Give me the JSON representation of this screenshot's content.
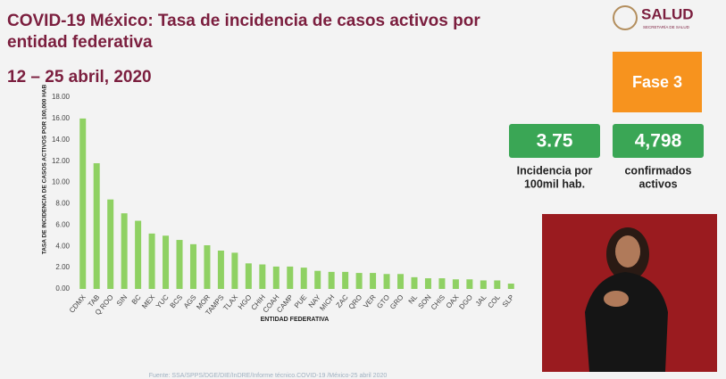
{
  "chart_data": {
    "type": "bar",
    "title": "COVID-19 México: Tasa de incidencia de casos activos por entidad federativa",
    "subtitle": "12 – 25 abril, 2020",
    "y_label": "TASA DE INCIDENCIA DE CASOS ACTIVOS POR 100,000 HAB",
    "x_label": "ENTIDAD FEDERATIVA",
    "categories": [
      "CDMX",
      "TAB",
      "Q ROO",
      "SIN",
      "BC",
      "MEX",
      "YUC",
      "BCS",
      "AGS",
      "MOR",
      "TAMPS",
      "TLAX",
      "HGO",
      "CHIH",
      "COAH",
      "CAMP",
      "PUE",
      "NAY",
      "MICH",
      "ZAC",
      "QRO",
      "VER",
      "GTO",
      "GRO",
      "NL",
      "SON",
      "CHIS",
      "OAX",
      "DGO",
      "JAL",
      "COL",
      "SLP"
    ],
    "values": [
      16.0,
      11.8,
      8.4,
      7.1,
      6.4,
      5.2,
      5.0,
      4.6,
      4.2,
      4.1,
      3.6,
      3.4,
      2.4,
      2.3,
      2.1,
      2.1,
      2.0,
      1.7,
      1.6,
      1.6,
      1.5,
      1.5,
      1.4,
      1.4,
      1.1,
      1.0,
      1.0,
      0.9,
      0.9,
      0.8,
      0.8,
      0.5
    ],
    "color": "#8fd163",
    "ylim": [
      0,
      18
    ],
    "yticks": [
      {
        "value": 0,
        "label": "0.00"
      },
      {
        "value": 2,
        "label": "2.00"
      },
      {
        "value": 4,
        "label": "4.00"
      },
      {
        "value": 6,
        "label": "6.00"
      },
      {
        "value": 8,
        "label": "8.00"
      },
      {
        "value": 10,
        "label": "10.00"
      },
      {
        "value": 12,
        "label": "12.00"
      },
      {
        "value": 14,
        "label": "14.00"
      },
      {
        "value": 16,
        "label": "16.00"
      },
      {
        "value": 18,
        "label": "18.00"
      }
    ],
    "grid": false
  },
  "header": {
    "brand": "SALUD",
    "brand_sub": "SECRETARÍA DE SALUD"
  },
  "panels": {
    "phase": "Fase 3",
    "incidence": "3.75",
    "incidence_label_1": "Incidencia por",
    "incidence_label_2": "100mil hab.",
    "confirmed": "4,798",
    "confirmed_label_1": "confirmados",
    "confirmed_label_2": "activos"
  },
  "footer": {
    "source": "Fuente: SSA/SPPS/DGE/DIE/InDRE/Informe técnico.COVID-19 /México-25 abril 2020"
  }
}
